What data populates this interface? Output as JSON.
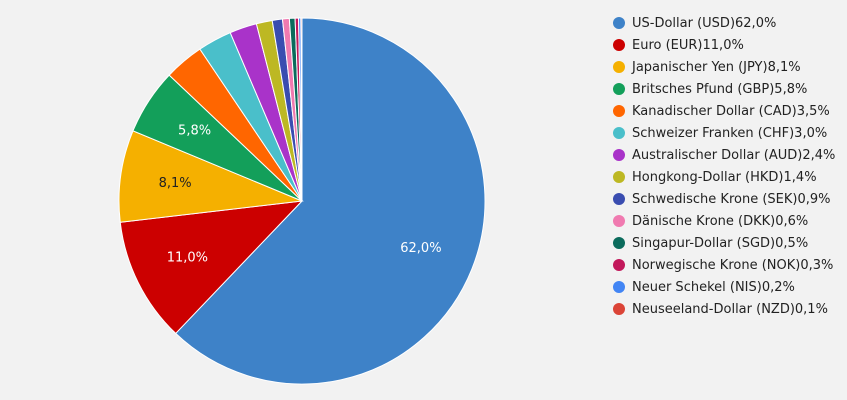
{
  "chart_data": {
    "type": "pie",
    "title": "",
    "legend_position": "right",
    "slices": [
      {
        "label": "US-Dollar (USD)",
        "value": 62.0,
        "display": "62,0%",
        "color": "#3e82c8",
        "label_color": "#ffffff"
      },
      {
        "label": "Euro (EUR)",
        "value": 11.0,
        "display": "11,0%",
        "color": "#cc0000",
        "label_color": "#ffffff"
      },
      {
        "label": "Japanischer Yen (JPY)",
        "value": 8.1,
        "display": "8,1%",
        "color": "#f5b000",
        "label_color": "#222222"
      },
      {
        "label": "Britsches Pfund (GBP)",
        "value": 5.8,
        "display": "5,8%",
        "color": "#139f5a",
        "label_color": "#ffffff"
      },
      {
        "label": "Kanadischer Dollar (CAD)",
        "value": 3.5,
        "display": "3,5%",
        "color": "#ff6600",
        "label_color": "#ffffff"
      },
      {
        "label": "Schweizer Franken (CHF)",
        "value": 3.0,
        "display": "3,0%",
        "color": "#4abfca",
        "label_color": "#ffffff"
      },
      {
        "label": "Australischer Dollar (AUD)",
        "value": 2.4,
        "display": "2,4%",
        "color": "#a933c9",
        "label_color": "#ffffff"
      },
      {
        "label": "Hongkong-Dollar (HKD)",
        "value": 1.4,
        "display": "1,4%",
        "color": "#bdb823",
        "label_color": "#ffffff"
      },
      {
        "label": "Schwedische Krone (SEK)",
        "value": 0.9,
        "display": "0,9%",
        "color": "#3a4db0",
        "label_color": "#ffffff"
      },
      {
        "label": "Dänische Krone (DKK)",
        "value": 0.6,
        "display": "0,6%",
        "color": "#f07ab0",
        "label_color": "#ffffff"
      },
      {
        "label": "Singapur-Dollar (SGD)",
        "value": 0.5,
        "display": "0,5%",
        "color": "#0b6b5c",
        "label_color": "#ffffff"
      },
      {
        "label": "Norwegische Krone (NOK)",
        "value": 0.3,
        "display": "0,3%",
        "color": "#c2185b",
        "label_color": "#ffffff"
      },
      {
        "label": "Neuer Schekel (NIS)",
        "value": 0.2,
        "display": "0,2%",
        "color": "#4285f4",
        "label_color": "#ffffff"
      },
      {
        "label": "Neuseeland-Dollar (NZD)",
        "value": 0.1,
        "display": "0,1%",
        "color": "#db4437",
        "label_color": "#ffffff"
      }
    ]
  }
}
